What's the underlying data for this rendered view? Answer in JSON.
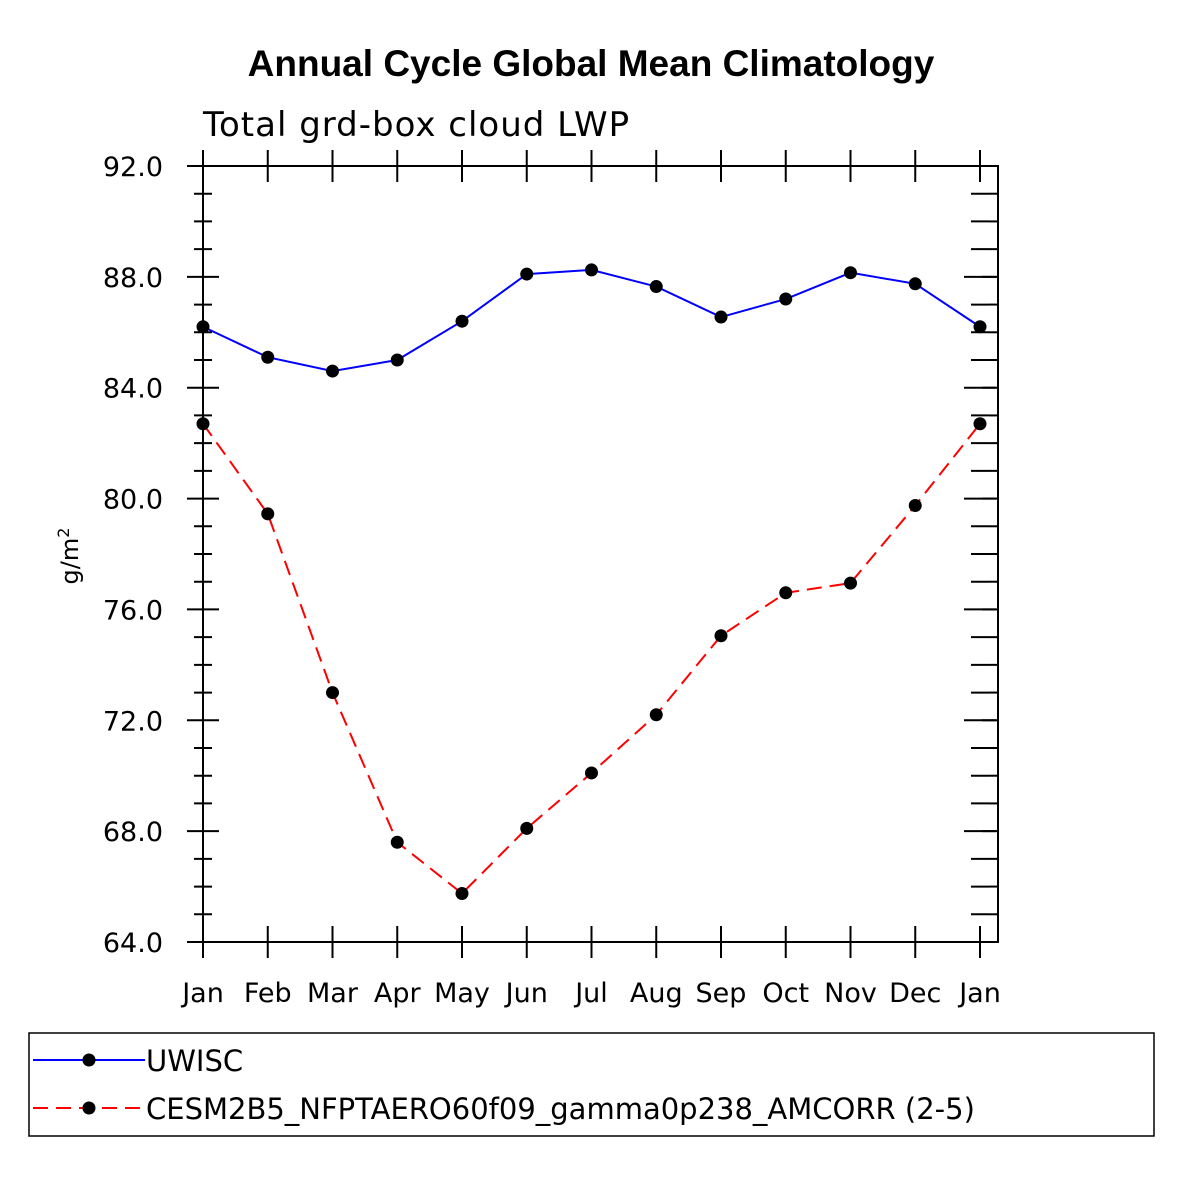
{
  "chart_data": {
    "type": "line",
    "title": "Annual Cycle Global Mean Climatology",
    "subtitle": "Total grd-box cloud LWP",
    "ylabel": "g/m",
    "ylabel_superscript": "2",
    "xlabel": "",
    "categories": [
      "Jan",
      "Feb",
      "Mar",
      "Apr",
      "May",
      "Jun",
      "Jul",
      "Aug",
      "Sep",
      "Oct",
      "Nov",
      "Dec",
      "Jan"
    ],
    "ylim": [
      64.0,
      92.0
    ],
    "yticks": [
      "64.0",
      "68.0",
      "72.0",
      "76.0",
      "80.0",
      "84.0",
      "88.0",
      "92.0"
    ],
    "series": [
      {
        "name": "UWISC",
        "color": "#0000ff",
        "dash": "solid",
        "values": [
          86.2,
          85.1,
          84.6,
          85.0,
          86.4,
          88.1,
          88.25,
          87.65,
          86.55,
          87.2,
          88.15,
          87.75,
          86.2
        ]
      },
      {
        "name": "CESM2B5_NFPTAERO60f09_gamma0p238_AMCORR (2-5)",
        "color": "#ff0000",
        "dash": "dashed",
        "values": [
          82.7,
          79.45,
          73.0,
          67.6,
          65.75,
          68.1,
          70.1,
          72.2,
          75.05,
          76.6,
          76.95,
          79.75,
          82.7
        ]
      }
    ],
    "legend_position": "bottom"
  }
}
